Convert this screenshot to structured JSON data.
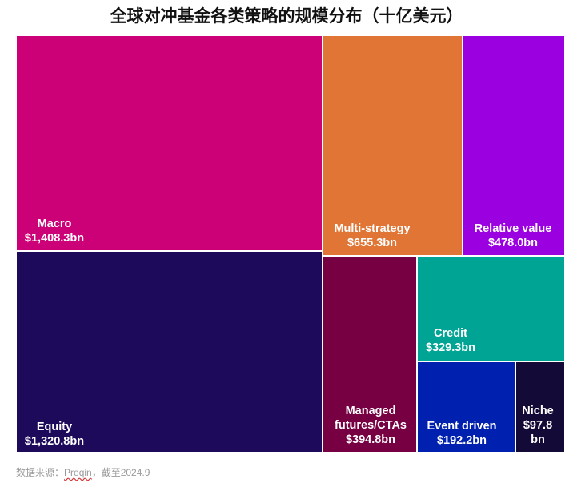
{
  "title": "全球对冲基金各类策略的规模分布（十亿美元）",
  "source": {
    "prefix": "数据来源：",
    "provider": "Preqin",
    "suffix": "，截至2024.9"
  },
  "chart_data": {
    "type": "treemap",
    "unit": "$bn",
    "title": "全球对冲基金各类策略的规模分布（十亿美元）",
    "items": [
      {
        "name": "Macro",
        "value": 1408.3,
        "label_lines": [
          "Macro",
          "$1,408.3bn"
        ],
        "color": "#cc0077"
      },
      {
        "name": "Equity",
        "value": 1320.8,
        "label_lines": [
          "Equity",
          "$1,320.8bn"
        ],
        "color": "#1d0a5a"
      },
      {
        "name": "Multi-strategy",
        "value": 655.3,
        "label_lines": [
          "Multi-strategy",
          "$655.3bn"
        ],
        "color": "#e07535"
      },
      {
        "name": "Relative value",
        "value": 478.0,
        "label_lines": [
          "Relative value",
          "$478.0bn"
        ],
        "color": "#9b00e0"
      },
      {
        "name": "Managed futures/CTAs",
        "value": 394.8,
        "label_lines": [
          "Managed",
          "futures/CTAs",
          "$394.8bn"
        ],
        "color": "#760042"
      },
      {
        "name": "Credit",
        "value": 329.3,
        "label_lines": [
          "Credit",
          "$329.3bn"
        ],
        "color": "#00a494"
      },
      {
        "name": "Event driven",
        "value": 192.2,
        "label_lines": [
          "Event driven",
          "$192.2bn"
        ],
        "color": "#0020b0"
      },
      {
        "name": "Niche",
        "value": 97.8,
        "label_lines": [
          "Niche",
          "$97.8",
          "bn"
        ],
        "color": "#130a38"
      }
    ]
  }
}
